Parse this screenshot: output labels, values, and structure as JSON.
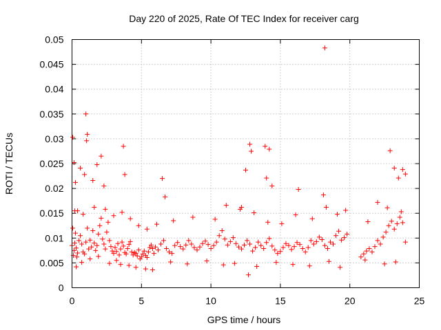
{
  "chart_data": {
    "type": "scatter",
    "title": "Day 220 of 2025, Rate Of TEC Index for receiver carg",
    "xlabel": "GPS time / hours",
    "ylabel": "ROTI / TECUs",
    "xlim": [
      0,
      25
    ],
    "ylim": [
      0,
      0.05
    ],
    "xticks": [
      "0",
      "5",
      "10",
      "15",
      "20",
      "25"
    ],
    "yticks": [
      "0",
      "0.005",
      "0.01",
      "0.015",
      "0.02",
      "0.025",
      "0.03",
      "0.035",
      "0.04",
      "0.045",
      "0.05"
    ],
    "grid": true,
    "marker": "+",
    "color": "#ff0000",
    "series": [
      {
        "name": "ROTI",
        "x": [
          0.0,
          0.05,
          0.1,
          0.15,
          0.2,
          0.25,
          0.3,
          0.35,
          0.4,
          0.5,
          0.6,
          0.7,
          0.8,
          0.9,
          1.0,
          1.1,
          1.2,
          1.3,
          1.4,
          1.5,
          1.6,
          1.7,
          1.8,
          1.9,
          2.0,
          2.1,
          2.2,
          2.3,
          2.4,
          2.5,
          2.6,
          2.7,
          2.8,
          2.9,
          3.0,
          3.1,
          3.2,
          3.3,
          3.4,
          3.5,
          3.6,
          3.7,
          3.8,
          3.9,
          4.0,
          4.1,
          4.2,
          4.3,
          4.4,
          4.5,
          4.6,
          4.7,
          4.8,
          4.9,
          5.0,
          5.1,
          5.2,
          5.3,
          5.4,
          5.5,
          5.6,
          5.7,
          5.8,
          5.9,
          6.0,
          6.2,
          6.4,
          6.6,
          6.8,
          7.0,
          7.2,
          7.4,
          7.6,
          7.8,
          8.0,
          8.2,
          8.4,
          8.6,
          8.8,
          9.0,
          9.2,
          9.4,
          9.6,
          9.8,
          10.0,
          10.2,
          10.4,
          10.6,
          10.8,
          11.0,
          11.2,
          11.4,
          11.6,
          11.8,
          12.0,
          12.2,
          12.4,
          12.6,
          12.8,
          13.0,
          13.2,
          13.4,
          13.6,
          13.8,
          14.0,
          14.2,
          14.4,
          14.6,
          14.8,
          15.0,
          15.2,
          15.4,
          15.6,
          15.8,
          16.0,
          16.2,
          16.4,
          16.6,
          16.8,
          17.0,
          17.2,
          17.4,
          17.6,
          17.8,
          18.0,
          18.2,
          18.4,
          18.6,
          18.8,
          19.0,
          19.2,
          19.4,
          19.6,
          19.8,
          20.8,
          21.0,
          21.2,
          21.4,
          21.6,
          21.8,
          22.0,
          22.2,
          22.4,
          22.6,
          22.8,
          23.0,
          23.2,
          23.4,
          23.6,
          23.8,
          24.0,
          0.05,
          0.15,
          0.25,
          0.4,
          0.6,
          0.9,
          1.0,
          1.05,
          1.1,
          1.5,
          1.8,
          2.1,
          2.3,
          3.7,
          3.8,
          6.5,
          6.7,
          12.2,
          12.5,
          12.8,
          12.9,
          13.9,
          14.0,
          14.2,
          14.4,
          16.3,
          18.1,
          18.2,
          22.0,
          22.9,
          23.2,
          23.5,
          23.8,
          24.0,
          0.3,
          0.7,
          1.3,
          1.9,
          2.7,
          3.2,
          3.5,
          4.1,
          4.6,
          5.3,
          5.8,
          7.1,
          8.3,
          9.7,
          10.9,
          11.7,
          12.7,
          13.3,
          14.7,
          15.9,
          17.1,
          18.5,
          19.3,
          21.1,
          22.5,
          23.3,
          0.2,
          0.8,
          1.6,
          2.4,
          3.0,
          3.6,
          4.2,
          4.8,
          5.4,
          6.1,
          7.3,
          8.7,
          10.3,
          11.1,
          12.1,
          13.1,
          14.1,
          15.1,
          16.1,
          17.3,
          18.3,
          19.1,
          19.7,
          21.3,
          22.7,
          23.7
        ],
        "y": [
          0.0085,
          0.012,
          0.0065,
          0.0075,
          0.009,
          0.011,
          0.008,
          0.0062,
          0.007,
          0.0095,
          0.0105,
          0.0088,
          0.0072,
          0.0068,
          0.0092,
          0.012,
          0.0078,
          0.0096,
          0.0082,
          0.0115,
          0.009,
          0.0075,
          0.0085,
          0.0108,
          0.0125,
          0.014,
          0.0098,
          0.0088,
          0.0078,
          0.0112,
          0.0132,
          0.0095,
          0.0083,
          0.0074,
          0.0069,
          0.0081,
          0.0073,
          0.0089,
          0.0066,
          0.0078,
          0.0092,
          0.0084,
          0.0071,
          0.0068,
          0.0079,
          0.0087,
          0.0093,
          0.0072,
          0.0066,
          0.0071,
          0.0069,
          0.0064,
          0.0076,
          0.0058,
          0.0062,
          0.0068,
          0.0074,
          0.0065,
          0.0061,
          0.0072,
          0.0081,
          0.0086,
          0.0079,
          0.0069,
          0.0082,
          0.0076,
          0.0088,
          0.0095,
          0.0079,
          0.0072,
          0.0069,
          0.0085,
          0.0091,
          0.0083,
          0.0078,
          0.0086,
          0.0095,
          0.0088,
          0.0081,
          0.0076,
          0.0082,
          0.0089,
          0.0094,
          0.0087,
          0.0079,
          0.0085,
          0.0092,
          0.0105,
          0.0115,
          0.0098,
          0.0086,
          0.0093,
          0.0101,
          0.0089,
          0.0082,
          0.0078,
          0.0086,
          0.0095,
          0.0088,
          0.0074,
          0.0081,
          0.0092,
          0.0085,
          0.0079,
          0.0091,
          0.0099,
          0.0084,
          0.0076,
          0.0069,
          0.0073,
          0.0081,
          0.0089,
          0.0085,
          0.0077,
          0.0083,
          0.0091,
          0.0087,
          0.0079,
          0.0072,
          0.0081,
          0.0095,
          0.0088,
          0.0093,
          0.0102,
          0.0097,
          0.0085,
          0.0079,
          0.0092,
          0.0088,
          0.0105,
          0.0114,
          0.0096,
          0.0101,
          0.0108,
          0.0062,
          0.0068,
          0.0074,
          0.0079,
          0.0072,
          0.0083,
          0.0095,
          0.0088,
          0.0102,
          0.0112,
          0.0125,
          0.0134,
          0.0118,
          0.0129,
          0.0142,
          0.0131,
          0.0092,
          0.0303,
          0.0252,
          0.0212,
          0.0155,
          0.0241,
          0.0228,
          0.035,
          0.0296,
          0.0309,
          0.0216,
          0.0248,
          0.0265,
          0.0205,
          0.0285,
          0.0228,
          0.022,
          0.0183,
          0.0162,
          0.0237,
          0.0289,
          0.0275,
          0.0285,
          0.0221,
          0.0279,
          0.0205,
          0.0198,
          0.0187,
          0.0483,
          0.0172,
          0.0276,
          0.0241,
          0.0221,
          0.0238,
          0.0229,
          0.0042,
          0.0051,
          0.0058,
          0.0063,
          0.0049,
          0.0055,
          0.0047,
          0.0045,
          0.0041,
          0.0038,
          0.0036,
          0.0052,
          0.0048,
          0.0054,
          0.0046,
          0.0049,
          0.0026,
          0.0043,
          0.0051,
          0.0047,
          0.0044,
          0.0053,
          0.0041,
          0.0056,
          0.0048,
          0.0052,
          0.0155,
          0.0148,
          0.0162,
          0.0158,
          0.0145,
          0.0152,
          0.0139,
          0.0125,
          0.0118,
          0.0128,
          0.0135,
          0.0142,
          0.0138,
          0.0166,
          0.0158,
          0.0151,
          0.0132,
          0.0129,
          0.0147,
          0.0139,
          0.0162,
          0.0148,
          0.0156,
          0.0133,
          0.0161,
          0.0153
        ]
      }
    ]
  }
}
